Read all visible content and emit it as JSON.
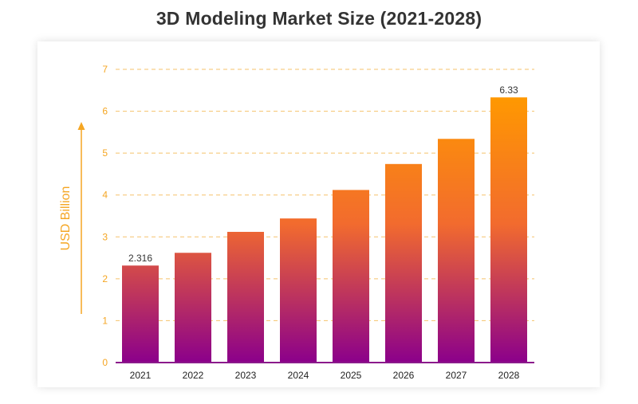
{
  "title": "3D Modeling Market Size (2021-2028)",
  "colors": {
    "bar_top": "#ff9900",
    "bar_mid": "#f26b2e",
    "bar_bottom": "#8b008b",
    "axis_text": "#f5a623",
    "grid": "#f5c26b",
    "baseline": "#8b1a8b"
  },
  "chart_data": {
    "type": "bar",
    "categories": [
      "2021",
      "2022",
      "2023",
      "2024",
      "2025",
      "2026",
      "2027",
      "2028"
    ],
    "values": [
      2.316,
      2.62,
      3.12,
      3.44,
      4.12,
      4.74,
      5.34,
      6.33
    ],
    "data_labels": [
      "2.316",
      "",
      "",
      "",
      "",
      "",
      "",
      "6.33"
    ],
    "yticks": [
      "0",
      "1",
      "2",
      "3",
      "4",
      "5",
      "6",
      "7"
    ],
    "ylabel": "USD Billion",
    "xlabel": "",
    "ylim": [
      0,
      7
    ],
    "grid": true
  }
}
